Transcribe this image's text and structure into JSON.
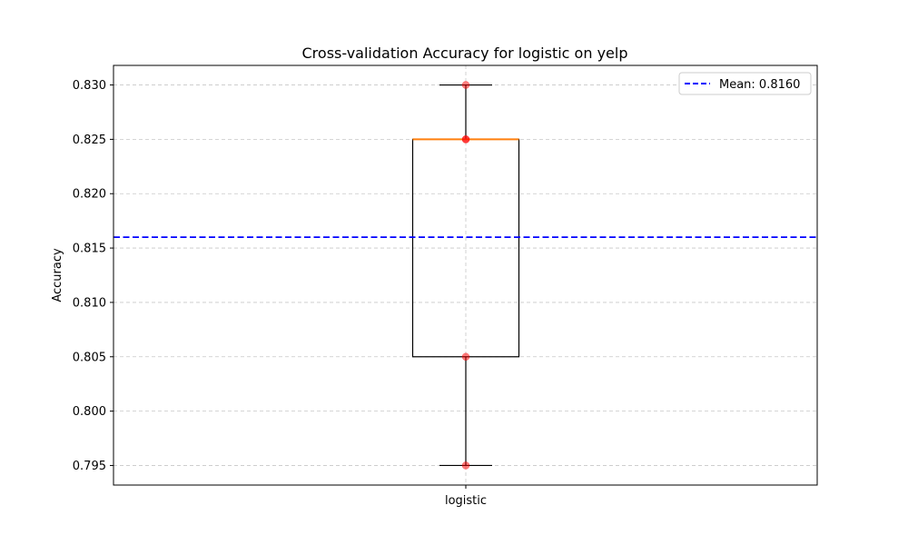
{
  "chart_data": {
    "type": "box",
    "title": "Cross-validation Accuracy for logistic on yelp",
    "xlabel": "",
    "ylabel": "Accuracy",
    "categories": [
      "logistic"
    ],
    "ylim": [
      0.7932,
      0.8318
    ],
    "yticks": [
      0.795,
      0.8,
      0.805,
      0.81,
      0.815,
      0.82,
      0.825,
      0.83
    ],
    "ytick_labels": [
      "0.795",
      "0.800",
      "0.805",
      "0.810",
      "0.815",
      "0.820",
      "0.825",
      "0.830"
    ],
    "grid": true,
    "box": {
      "category": "logistic",
      "whisker_low": 0.795,
      "q1": 0.805,
      "median": 0.825,
      "q3": 0.825,
      "whisker_high": 0.83
    },
    "points": [
      0.83,
      0.825,
      0.825,
      0.805,
      0.795
    ],
    "mean_line": {
      "value": 0.816,
      "label": "Mean: 0.8160",
      "color": "#0000ff"
    },
    "legend_position": "top-right",
    "colors": {
      "median": "#ff7f0e",
      "points": "#ff0000",
      "box": "#000000",
      "grid": "#b0b0b0"
    }
  }
}
